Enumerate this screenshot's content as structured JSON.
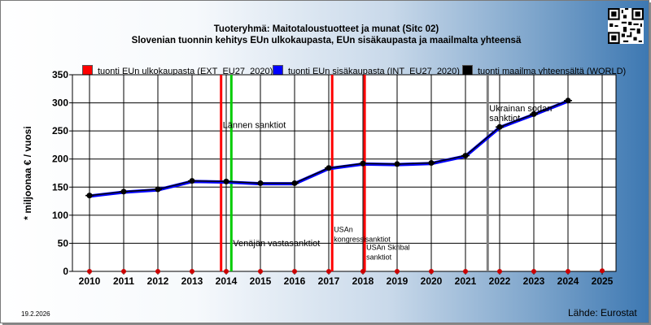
{
  "title_line1": "Tuoteryhmä: Maitotaloustuotteet ja munat (Sitc 02)",
  "title_line2": "Slovenian tuonnin kehitys EUn ulkokaupasta, EUn sisäkaupasta ja maailmalta yhteensä",
  "legend": [
    {
      "label": "tuonti EUn ulkokaupasta (EXT_EU27_2020)",
      "color": "#ff0000"
    },
    {
      "label": "tuonti EUn sisäkaupasta (INT_EU27_2020)",
      "color": "#0000ff"
    },
    {
      "label": "tuonti maailma yhteensältä (WORLD)",
      "color": "#000000"
    }
  ],
  "ylabel": "* miljoonaa € / vuosi",
  "date": "19.2.2026",
  "source": "Lähde: Eurostat",
  "chart_data": {
    "type": "line",
    "x": [
      2010,
      2011,
      2012,
      2013,
      2014,
      2015,
      2016,
      2017,
      2018,
      2019,
      2020,
      2021,
      2022,
      2023,
      2024,
      2025
    ],
    "ylim": [
      0,
      350
    ],
    "yticks": [
      0,
      50,
      100,
      150,
      200,
      250,
      300,
      350
    ],
    "grid": true,
    "legend_position": "top",
    "series": [
      {
        "name": "tuonti EUn ulkokaupasta (EXT_EU27_2020)",
        "color": "#ff0000",
        "values": [
          0,
          0,
          0,
          0,
          0,
          0,
          0,
          0,
          0,
          0,
          0,
          0,
          0,
          0,
          0,
          1
        ]
      },
      {
        "name": "tuonti EUn sisäkaupasta (INT_EU27_2020)",
        "color": "#0000ff",
        "values": [
          134,
          141,
          145,
          160,
          159,
          156,
          156,
          183,
          191,
          190,
          192,
          205,
          256,
          279,
          303,
          null
        ]
      },
      {
        "name": "tuonti maailma yhteensältä (WORLD)",
        "color": "#000000",
        "values": [
          135,
          142,
          146,
          161,
          160,
          157,
          157,
          184,
          192,
          191,
          193,
          206,
          257,
          280,
          304,
          null
        ]
      }
    ],
    "annotations": [
      {
        "x": 2013.85,
        "color": "#ff0000",
        "label": "Lännen sanktiot",
        "label_y": 255
      },
      {
        "x": 2014.15,
        "color": "#00cc00",
        "label": "Venäjän vastasanktiot",
        "label_y": 45
      },
      {
        "x": 2017.1,
        "color": "#ff0000",
        "label": "USAn kongressisanktiot",
        "label_y": 70
      },
      {
        "x": 2018.05,
        "color": "#ff0000",
        "label": "USAn Skribal sanktiot",
        "label_y": 38
      },
      {
        "x": 2021.65,
        "color": "#808080",
        "label": "Ukrainan sodan sanktiot",
        "label_y": 285
      }
    ]
  }
}
